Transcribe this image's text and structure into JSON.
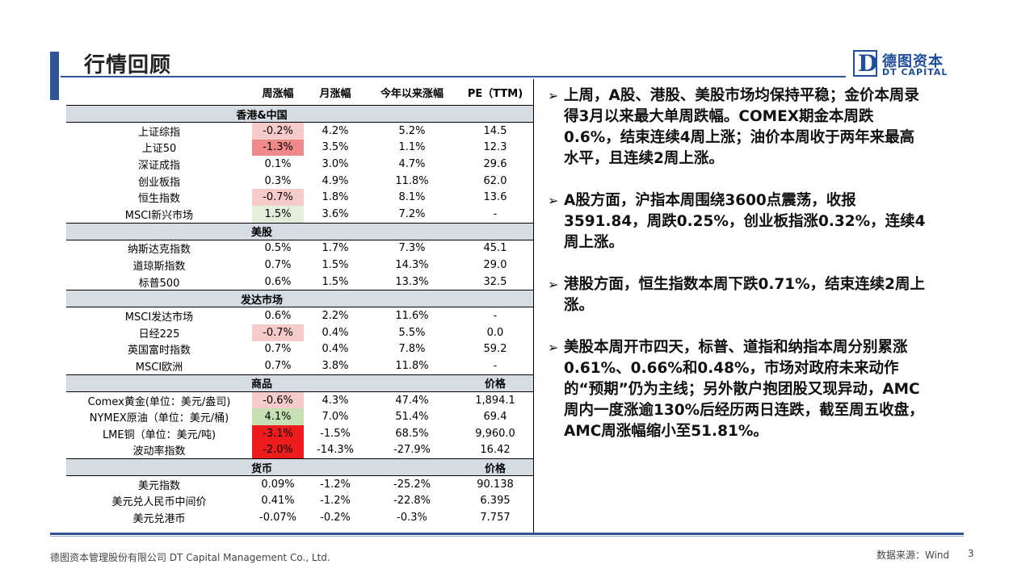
{
  "title": "行情回顾",
  "logo": {
    "mark": "D",
    "cn": "德图资本",
    "en": "DT CAPITAL"
  },
  "colors": {
    "accent": "#2f5496",
    "section_bg": "#d6dce4",
    "neg_light": "#f8cbcb",
    "neg_mid": "#f08a8a",
    "neg_strong": "#ee1c1c",
    "pos_light": "#e2efda",
    "pos_mid": "#c6e0b4"
  },
  "table": {
    "headers": [
      "",
      "周涨幅",
      "月涨幅",
      "今年以来涨幅",
      "PE（TTM)"
    ],
    "sections": [
      {
        "title": "香港&中国",
        "right": "",
        "rows": [
          {
            "name": "上证综指",
            "w": "-0.2%",
            "m": "4.2%",
            "y": "5.2%",
            "pe": "14.5",
            "wcolor": "neg_light"
          },
          {
            "name": "上证50",
            "w": "-1.3%",
            "m": "3.5%",
            "y": "1.1%",
            "pe": "12.3",
            "wcolor": "neg_mid"
          },
          {
            "name": "深证成指",
            "w": "0.1%",
            "m": "3.0%",
            "y": "4.7%",
            "pe": "29.6",
            "wcolor": ""
          },
          {
            "name": "创业板指",
            "w": "0.3%",
            "m": "4.9%",
            "y": "11.8%",
            "pe": "62.0",
            "wcolor": ""
          },
          {
            "name": "恒生指数",
            "w": "-0.7%",
            "m": "1.8%",
            "y": "8.1%",
            "pe": "13.6",
            "wcolor": "neg_light"
          },
          {
            "name": "MSCI新兴市场",
            "w": "1.5%",
            "m": "3.6%",
            "y": "7.2%",
            "pe": "-",
            "wcolor": "pos_light"
          }
        ]
      },
      {
        "title": "美股",
        "right": "",
        "rows": [
          {
            "name": "纳斯达克指数",
            "w": "0.5%",
            "m": "1.7%",
            "y": "7.3%",
            "pe": "45.1",
            "wcolor": ""
          },
          {
            "name": "道琼斯指数",
            "w": "0.7%",
            "m": "1.5%",
            "y": "14.3%",
            "pe": "29.0",
            "wcolor": ""
          },
          {
            "name": "标普500",
            "w": "0.6%",
            "m": "1.5%",
            "y": "13.3%",
            "pe": "32.5",
            "wcolor": ""
          }
        ]
      },
      {
        "title": "发达市场",
        "right": "",
        "rows": [
          {
            "name": "MSCI发达市场",
            "w": "0.6%",
            "m": "2.2%",
            "y": "11.6%",
            "pe": "-",
            "wcolor": ""
          },
          {
            "name": "日经225",
            "w": "-0.7%",
            "m": "0.4%",
            "y": "5.5%",
            "pe": "0.0",
            "wcolor": "neg_light"
          },
          {
            "name": "英国富时指数",
            "w": "0.7%",
            "m": "0.4%",
            "y": "7.8%",
            "pe": "59.2",
            "wcolor": ""
          },
          {
            "name": "MSCI欧洲",
            "w": "0.7%",
            "m": "3.8%",
            "y": "11.8%",
            "pe": "-",
            "wcolor": ""
          }
        ]
      },
      {
        "title": "商品",
        "right": "价格",
        "rows": [
          {
            "name": "Comex黄金(单位：美元/盎司)",
            "w": "-0.6%",
            "m": "4.3%",
            "y": "47.4%",
            "pe": "1,894.1",
            "wcolor": "neg_light"
          },
          {
            "name": "NYMEX原油（单位：美元/桶)",
            "w": "4.1%",
            "m": "7.0%",
            "y": "51.4%",
            "pe": "69.4",
            "wcolor": "pos_mid"
          },
          {
            "name": "LME铜（单位：美元/吨)",
            "w": "-3.1%",
            "m": "-1.5%",
            "y": "68.5%",
            "pe": "9,960.0",
            "wcolor": "neg_strong"
          },
          {
            "name": "波动率指数",
            "w": "-2.0%",
            "m": "-14.3%",
            "y": "-27.9%",
            "pe": "16.42",
            "wcolor": "neg_strong"
          }
        ]
      },
      {
        "title": "货币",
        "right": "价格",
        "rows": [
          {
            "name": "美元指数",
            "w": "0.09%",
            "m": "-1.2%",
            "y": "-25.2%",
            "pe": "90.138",
            "wcolor": ""
          },
          {
            "name": "美元兑人民币中间价",
            "w": "0.41%",
            "m": "-1.2%",
            "y": "-22.8%",
            "pe": "6.395",
            "wcolor": ""
          },
          {
            "name": "美元兑港币",
            "w": "-0.07%",
            "m": "-0.2%",
            "y": "-0.3%",
            "pe": "7.757",
            "wcolor": ""
          }
        ]
      }
    ]
  },
  "bullets": [
    "上周，A股、港股、美股市场均保持平稳；金价本周录得3月以来最大单周跌幅。COMEX期金本周跌0.6%，结束连续4周上涨；油价本周收于两年来最高水平，且连续2周上涨。",
    "A股方面，沪指本周围绕3600点震荡，收报3591.84，周跌0.25%，创业板指涨0.32%，连续4周上涨。",
    "港股方面，恒生指数本周下跌0.71%，结束连续2周上涨。",
    "美股本周开市四天，标普、道指和纳指本周分别累涨0.61%、0.66%和0.48%，市场对政府未来动作的“预期”仍为主线；另外散户抱团股又现异动，AMC周内一度涨逾130%后经历两日连跌，截至周五收盘，AMC周涨幅缩小至51.81%。"
  ],
  "footer": {
    "company": "德图资本管理股份有限公司 DT Capital Management Co., Ltd.",
    "source": "数据来源：Wind",
    "page": "3"
  }
}
